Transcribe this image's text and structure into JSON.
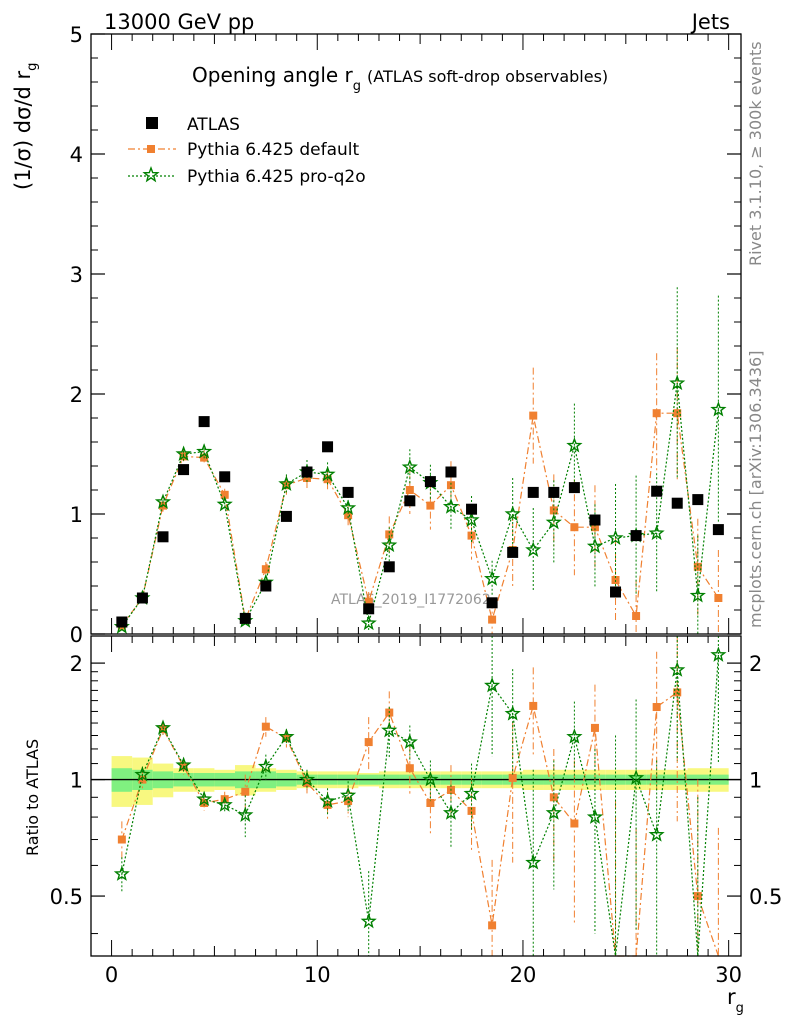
{
  "header": {
    "left": "13000 GeV pp",
    "right": "Jets"
  },
  "title": {
    "main": "Opening angle r",
    "subscript": "g",
    "detail": "(ATLAS soft-drop observables)"
  },
  "side_labels": {
    "rivet": "Rivet 3.1.10, ≥ 300k events",
    "mcplots": "mcplots.cern.ch [arXiv:1306.3436]"
  },
  "watermark": "ATLAS_2019_I1772062",
  "legend": {
    "atlas": "ATLAS",
    "default": "Pythia 6.425 default",
    "proq2o": "Pythia 6.425 pro-q2o"
  },
  "colors": {
    "atlas": "#000000",
    "default": "#f08030",
    "proq2o": "#008000",
    "band_inner": "#80f080",
    "band_outer": "#f8f880"
  },
  "chart_data": [
    {
      "type": "scatter",
      "panel": "main",
      "ylabel_main": "(1/σ) dσ/d r",
      "ylabel_sub": "g",
      "xlim": [
        -1,
        30.6
      ],
      "ylim": [
        0,
        5
      ],
      "yticks": [
        0,
        1,
        2,
        3,
        4,
        5
      ],
      "x": [
        0.5,
        1.5,
        2.5,
        3.5,
        4.5,
        5.5,
        6.5,
        7.5,
        8.5,
        9.5,
        10.5,
        11.5,
        12.5,
        13.5,
        14.5,
        15.5,
        16.5,
        17.5,
        18.5,
        19.5,
        20.5,
        21.5,
        22.5,
        23.5,
        24.5,
        25.5,
        26.5,
        27.5,
        28.5,
        29.5
      ],
      "series": [
        {
          "name": "ATLAS",
          "values": [
            0.1,
            0.3,
            0.81,
            1.37,
            1.77,
            1.31,
            0.13,
            0.4,
            0.98,
            1.35,
            1.56,
            1.18,
            0.21,
            0.56,
            1.11,
            1.27,
            1.35,
            1.04,
            0.26,
            0.68,
            1.18,
            1.18,
            1.22,
            0.95,
            0.35,
            0.82,
            1.19,
            1.09,
            1.12,
            0.87
          ],
          "errors": [
            0,
            0,
            0,
            0,
            0,
            0,
            0,
            0,
            0,
            0,
            0,
            0,
            0,
            0,
            0,
            0,
            0,
            0,
            0,
            0,
            0,
            0,
            0,
            0,
            0,
            0,
            0,
            0,
            0,
            0
          ]
        },
        {
          "name": "Pythia 6.425 default",
          "values": [
            0.07,
            0.3,
            1.07,
            1.48,
            1.47,
            1.16,
            0.12,
            0.54,
            1.24,
            1.3,
            1.29,
            0.99,
            0.27,
            0.83,
            1.2,
            1.07,
            1.24,
            0.82,
            0.12,
            0.7,
            1.82,
            1.03,
            0.89,
            0.89,
            0.45,
            0.15,
            1.84,
            1.84,
            0.56,
            0.3
          ],
          "errors": [
            0.01,
            0.03,
            0.05,
            0.06,
            0.06,
            0.05,
            0.03,
            0.06,
            0.08,
            0.1,
            0.1,
            0.1,
            0.08,
            0.15,
            0.2,
            0.2,
            0.2,
            0.2,
            0.15,
            0.3,
            0.4,
            0.3,
            0.4,
            0.35,
            0.35,
            0.3,
            0.5,
            0.55,
            0.4,
            0.4
          ]
        },
        {
          "name": "Pythia 6.425 pro-q2o",
          "values": [
            0.06,
            0.3,
            1.1,
            1.5,
            1.52,
            1.08,
            0.11,
            0.43,
            1.25,
            1.35,
            1.33,
            1.05,
            0.09,
            0.74,
            1.39,
            1.26,
            1.06,
            0.95,
            0.46,
            1.0,
            0.7,
            0.93,
            1.57,
            0.73,
            0.8,
            0.82,
            0.84,
            2.09,
            0.32,
            1.87
          ],
          "errors": [
            0.01,
            0.03,
            0.05,
            0.06,
            0.06,
            0.05,
            0.03,
            0.06,
            0.08,
            0.1,
            0.1,
            0.1,
            0.06,
            0.15,
            0.15,
            0.15,
            0.2,
            0.2,
            0.15,
            0.3,
            0.35,
            0.35,
            0.35,
            0.35,
            0.45,
            0.5,
            0.5,
            0.8,
            0.5,
            0.95
          ]
        }
      ]
    },
    {
      "type": "scatter",
      "panel": "ratio",
      "ylabel": "Ratio to ATLAS",
      "xlabel_main": "r",
      "xlabel_sub": "g",
      "xlim": [
        -1,
        30.6
      ],
      "ylim": [
        0.35,
        2.35
      ],
      "yticks": [
        0.5,
        1,
        2
      ],
      "xticks": [
        0,
        10,
        20,
        30
      ],
      "x": [
        0.5,
        1.5,
        2.5,
        3.5,
        4.5,
        5.5,
        6.5,
        7.5,
        8.5,
        9.5,
        10.5,
        11.5,
        12.5,
        13.5,
        14.5,
        15.5,
        16.5,
        17.5,
        18.5,
        19.5,
        20.5,
        21.5,
        22.5,
        23.5,
        24.5,
        25.5,
        26.5,
        27.5,
        28.5,
        29.5
      ],
      "reference": 1,
      "band_inner": [
        0.07,
        0.06,
        0.05,
        0.04,
        0.04,
        0.04,
        0.05,
        0.05,
        0.04,
        0.03,
        0.03,
        0.03,
        0.03,
        0.03,
        0.03,
        0.03,
        0.03,
        0.03,
        0.03,
        0.03,
        0.03,
        0.03,
        0.03,
        0.03,
        0.03,
        0.03,
        0.03,
        0.03,
        0.03,
        0.03
      ],
      "band_outer": [
        0.15,
        0.14,
        0.1,
        0.07,
        0.07,
        0.06,
        0.09,
        0.07,
        0.06,
        0.05,
        0.05,
        0.05,
        0.04,
        0.05,
        0.05,
        0.05,
        0.05,
        0.05,
        0.05,
        0.05,
        0.06,
        0.06,
        0.06,
        0.06,
        0.06,
        0.06,
        0.06,
        0.06,
        0.07,
        0.07
      ],
      "series": [
        {
          "name": "Pythia 6.425 default",
          "values": [
            0.7,
            1.0,
            1.35,
            1.08,
            0.87,
            0.89,
            0.93,
            1.37,
            1.28,
            0.98,
            0.86,
            0.88,
            1.25,
            1.49,
            1.07,
            0.87,
            0.94,
            0.83,
            0.42,
            1.01,
            1.55,
            0.9,
            0.77,
            1.36,
            0.28,
            0.25,
            1.54,
            1.68,
            0.5,
            0.25
          ],
          "errors": [
            0.08,
            0.05,
            0.05,
            0.05,
            0.04,
            0.04,
            0.1,
            0.08,
            0.07,
            0.07,
            0.07,
            0.08,
            0.2,
            0.2,
            0.15,
            0.15,
            0.15,
            0.18,
            0.2,
            0.4,
            0.4,
            0.3,
            0.35,
            0.4,
            0.6,
            0.5,
            0.6,
            0.9,
            0.5,
            0.5
          ]
        },
        {
          "name": "Pythia 6.425 pro-q2o",
          "values": [
            0.57,
            1.03,
            1.36,
            1.09,
            0.89,
            0.86,
            0.81,
            1.08,
            1.29,
            1.0,
            0.88,
            0.91,
            0.43,
            1.34,
            1.25,
            1.0,
            0.82,
            0.92,
            1.75,
            1.48,
            0.61,
            0.82,
            1.29,
            0.8,
            0.3,
            1.01,
            0.72,
            1.92,
            0.3,
            2.1
          ],
          "errors": [
            0.06,
            0.05,
            0.05,
            0.05,
            0.04,
            0.04,
            0.1,
            0.08,
            0.06,
            0.06,
            0.07,
            0.08,
            0.15,
            0.2,
            0.13,
            0.12,
            0.15,
            0.18,
            0.6,
            0.45,
            0.45,
            0.3,
            0.3,
            0.4,
            1.0,
            0.6,
            0.4,
            0.8,
            0.6,
            1.0
          ]
        }
      ]
    }
  ]
}
